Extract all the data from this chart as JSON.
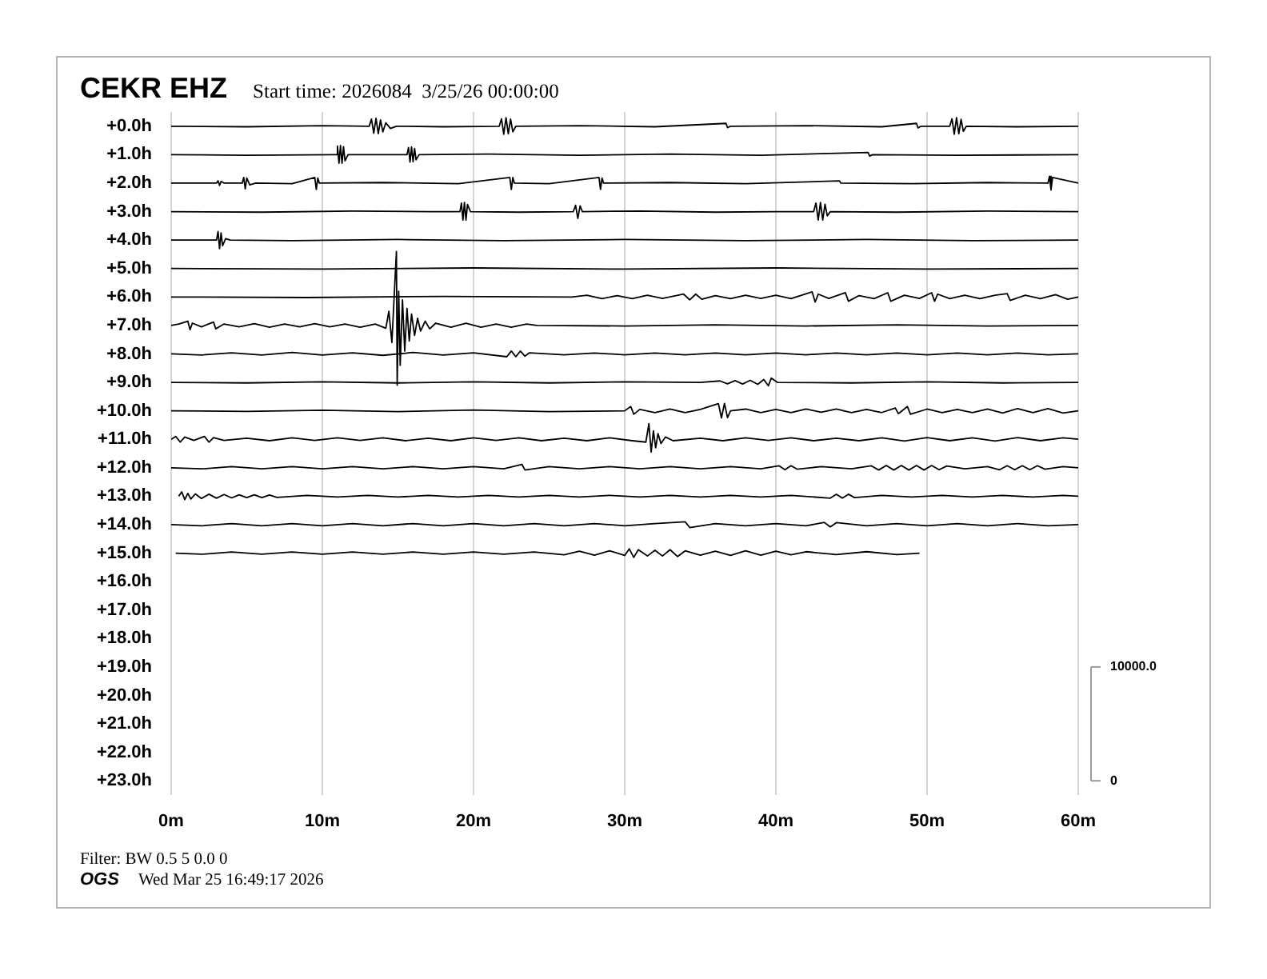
{
  "chart_data": {
    "type": "line",
    "title": "CEKR EHZ",
    "subtitle": "Start time: 2026084  3/25/26 00:00:00",
    "annotations": [
      "Filter: BW 0.5 5 0.0 0",
      "OGS",
      "Wed Mar 25 16:49:17 2026"
    ],
    "xlim": [
      0,
      60
    ],
    "xticks": [
      {
        "value": 0,
        "label": "0m"
      },
      {
        "value": 10,
        "label": "10m"
      },
      {
        "value": 20,
        "label": "20m"
      },
      {
        "value": 30,
        "label": "30m"
      },
      {
        "value": 40,
        "label": "40m"
      },
      {
        "value": 50,
        "label": "50m"
      },
      {
        "value": 60,
        "label": "60m"
      }
    ],
    "ylim": [
      23.5,
      -0.5
    ],
    "yticks": [
      {
        "value": 0,
        "label": "+0.0h"
      },
      {
        "value": 1,
        "label": "+1.0h"
      },
      {
        "value": 2,
        "label": "+2.0h"
      },
      {
        "value": 3,
        "label": "+3.0h"
      },
      {
        "value": 4,
        "label": "+4.0h"
      },
      {
        "value": 5,
        "label": "+5.0h"
      },
      {
        "value": 6,
        "label": "+6.0h"
      },
      {
        "value": 7,
        "label": "+7.0h"
      },
      {
        "value": 8,
        "label": "+8.0h"
      },
      {
        "value": 9,
        "label": "+9.0h"
      },
      {
        "value": 10,
        "label": "+10.0h"
      },
      {
        "value": 11,
        "label": "+11.0h"
      },
      {
        "value": 12,
        "label": "+12.0h"
      },
      {
        "value": 13,
        "label": "+13.0h"
      },
      {
        "value": 14,
        "label": "+14.0h"
      },
      {
        "value": 15,
        "label": "+15.0h"
      },
      {
        "value": 16,
        "label": "+16.0h"
      },
      {
        "value": 17,
        "label": "+17.0h"
      },
      {
        "value": 18,
        "label": "+18.0h"
      },
      {
        "value": 19,
        "label": "+19.0h"
      },
      {
        "value": 20,
        "label": "+20.0h"
      },
      {
        "value": 21,
        "label": "+21.0h"
      },
      {
        "value": 22,
        "label": "+22.0h"
      },
      {
        "value": 23,
        "label": "+23.0h"
      }
    ],
    "y2lim": [
      -1250,
      58750
    ],
    "y2ticks": [
      0,
      {
        "value": 10000,
        "label": "10000.0"
      }
    ],
    "grid": "x",
    "series": [
      {
        "color": "#000000",
        "x": [
          0,
          5,
          10,
          13.1,
          13.25,
          13.4,
          13.55,
          13.7,
          13.85,
          14.0,
          14.2,
          14.5,
          14.9,
          18,
          21.7,
          21.85,
          22.0,
          22.15,
          22.3,
          22.45,
          22.6,
          22.8,
          27,
          32,
          36.7,
          36.8,
          37,
          42,
          47,
          49.3,
          49.4,
          49.6,
          51.5,
          51.65,
          51.8,
          51.95,
          52.1,
          52.25,
          52.4,
          52.6,
          56,
          60
        ],
        "values": [
          0,
          0.02,
          -0.02,
          0,
          -0.25,
          0.25,
          -0.28,
          0.26,
          -0.22,
          0.2,
          -0.12,
          0.08,
          0,
          0.02,
          0,
          -0.26,
          0.28,
          -0.3,
          0.27,
          -0.25,
          0.2,
          0,
          -0.02,
          0.02,
          -0.1,
          0.05,
          0,
          -0.02,
          0.02,
          -0.1,
          0.06,
          0,
          0,
          -0.26,
          0.28,
          -0.3,
          0.27,
          -0.24,
          0.18,
          0,
          0.02,
          0
        ]
      },
      {
        "color": "#000000",
        "x": [
          0,
          5,
          10.9,
          11.0,
          11.1,
          11.2,
          11.3,
          11.4,
          11.5,
          11.7,
          15.6,
          15.7,
          15.8,
          15.9,
          16.0,
          16.1,
          16.2,
          16.4,
          21,
          27,
          33,
          39,
          46.1,
          46.2,
          46.4,
          52,
          60
        ],
        "values": [
          1,
          1.02,
          1,
          0.7,
          1.3,
          0.68,
          1.3,
          0.72,
          1.22,
          1,
          1,
          0.75,
          1.26,
          0.73,
          1.25,
          0.78,
          1.18,
          1,
          0.98,
          1.02,
          0.98,
          1.02,
          0.92,
          1.05,
          1,
          1.02,
          1
        ]
      },
      {
        "color": "#000000",
        "x": [
          0,
          3.0,
          3.1,
          3.2,
          3.3,
          3.5,
          4.7,
          4.8,
          4.9,
          5.0,
          5.2,
          5.6,
          8,
          9.5,
          9.6,
          9.7,
          9.8,
          14,
          19,
          22.4,
          22.5,
          22.6,
          22.7,
          25,
          28.3,
          28.4,
          28.5,
          28.6,
          33,
          38,
          44.2,
          44.3,
          49,
          54,
          58.0,
          58.1,
          58.2,
          58.3,
          60
        ],
        "values": [
          2,
          2,
          1.92,
          2.08,
          1.94,
          2,
          2,
          1.8,
          2.2,
          1.82,
          2.06,
          2,
          2.02,
          1.8,
          2.22,
          1.82,
          2,
          1.98,
          2.02,
          1.8,
          2.22,
          1.8,
          2,
          2.02,
          1.8,
          2.22,
          1.82,
          2,
          1.98,
          2.02,
          1.92,
          2,
          2.02,
          1.98,
          2,
          1.76,
          2.24,
          1.8,
          2
        ]
      },
      {
        "color": "#000000",
        "x": [
          0,
          6,
          12,
          17,
          19.1,
          19.2,
          19.3,
          19.4,
          19.5,
          19.6,
          19.8,
          23,
          26.6,
          26.75,
          26.9,
          27.05,
          27.2,
          31,
          36,
          40,
          42.5,
          42.65,
          42.8,
          42.95,
          43.1,
          43.25,
          43.4,
          43.6,
          48,
          54,
          60
        ],
        "values": [
          3,
          3.02,
          2.98,
          3,
          3,
          2.7,
          3.3,
          2.68,
          3.3,
          2.75,
          3,
          3.02,
          3,
          2.78,
          3.24,
          2.8,
          3,
          2.98,
          3.02,
          3,
          3,
          2.7,
          3.3,
          2.68,
          3.3,
          2.74,
          3.15,
          3,
          3.02,
          2.98,
          3
        ]
      },
      {
        "color": "#000000",
        "x": [
          0,
          3.0,
          3.1,
          3.2,
          3.3,
          3.4,
          3.6,
          3.9,
          8,
          15,
          22,
          30,
          38,
          46,
          53,
          60
        ],
        "values": [
          4,
          4,
          3.7,
          4.3,
          3.75,
          4.2,
          3.95,
          4,
          4.02,
          3.98,
          4.02,
          3.98,
          4.02,
          3.98,
          4.02,
          4
        ]
      },
      {
        "color": "#000000",
        "x": [
          0,
          10,
          20,
          30,
          40,
          50,
          60
        ],
        "values": [
          5,
          5.02,
          4.98,
          5.02,
          4.98,
          5.02,
          5
        ]
      },
      {
        "color": "#000000",
        "x": [
          0,
          9,
          18,
          26.5,
          27.5,
          28.5,
          29.5,
          30.5,
          31.5,
          32.5,
          33.9,
          34.3,
          34.7,
          35.1,
          36,
          37,
          38,
          39,
          40,
          41,
          42.4,
          42.6,
          42.8,
          43.5,
          44.6,
          44.8,
          45.5,
          46.5,
          47.4,
          47.6,
          48.5,
          49.5,
          50.3,
          50.5,
          50.7,
          51.5,
          52.5,
          53.5,
          54.5,
          55.3,
          55.5,
          56.5,
          57.5,
          58.5,
          59.3,
          60
        ],
        "values": [
          6,
          6.02,
          5.98,
          6,
          5.94,
          6.06,
          5.95,
          6.06,
          5.94,
          6.05,
          5.9,
          6.1,
          5.9,
          6.08,
          5.95,
          6.06,
          5.94,
          6.05,
          5.94,
          6.06,
          5.82,
          6.18,
          5.9,
          6.05,
          5.85,
          6.15,
          5.95,
          6.06,
          5.85,
          6.15,
          5.94,
          6.05,
          5.85,
          6.15,
          5.9,
          6.06,
          5.94,
          6.06,
          5.94,
          5.88,
          6.12,
          5.94,
          6.06,
          5.92,
          6.08,
          6
        ]
      },
      {
        "color": "#000000",
        "x": [
          0,
          0.5,
          1.1,
          1.25,
          1.4,
          2,
          2.8,
          2.95,
          3.5,
          4.5,
          5.5,
          6.5,
          7.5,
          8.5,
          9.5,
          10.5,
          11.5,
          12.5,
          13.5,
          14.2,
          14.4,
          14.6,
          14.75,
          14.9,
          14.95,
          15.05,
          15.15,
          15.3,
          15.45,
          15.6,
          15.75,
          15.9,
          16.1,
          16.3,
          16.5,
          16.8,
          17.1,
          17.5,
          18.5,
          19.5,
          20.5,
          21.5,
          22.5,
          23.5,
          24.2,
          30,
          36,
          42,
          48,
          54,
          60
        ],
        "values": [
          7,
          6.95,
          6.85,
          7.15,
          6.92,
          7.05,
          6.88,
          7.12,
          6.95,
          7.05,
          6.94,
          7.06,
          6.95,
          7.05,
          6.94,
          7.05,
          6.95,
          7.06,
          6.95,
          7.1,
          6.5,
          7.6,
          6,
          4.4,
          9.1,
          5.8,
          8.4,
          6.1,
          7.9,
          6.4,
          7.55,
          6.6,
          7.35,
          6.75,
          7.2,
          6.85,
          7.12,
          6.92,
          7.06,
          6.92,
          7.06,
          6.95,
          7.06,
          6.95,
          7,
          7.02,
          6.98,
          7.02,
          6.98,
          7.02,
          7
        ]
      },
      {
        "color": "#000000",
        "x": [
          0,
          2,
          4,
          6,
          8,
          10,
          12,
          14,
          16,
          18,
          20,
          22.2,
          22.5,
          22.8,
          23.1,
          23.4,
          23.7,
          26,
          28,
          30,
          32,
          34,
          36,
          38,
          40,
          42,
          44,
          46,
          48,
          50,
          52,
          54,
          56,
          58,
          60
        ],
        "values": [
          8,
          8.04,
          7.96,
          8.04,
          7.95,
          8.04,
          7.96,
          8.05,
          7.95,
          8.04,
          7.96,
          8.1,
          7.9,
          8.1,
          7.9,
          8.08,
          7.96,
          8.03,
          7.97,
          8.03,
          7.97,
          8.03,
          7.97,
          8.03,
          7.97,
          8.03,
          7.97,
          8.03,
          7.97,
          8.03,
          7.97,
          8.03,
          7.97,
          8.03,
          8
        ]
      },
      {
        "color": "#000000",
        "x": [
          0,
          5,
          10,
          15,
          20,
          25,
          30,
          35,
          36.3,
          36.8,
          37.3,
          37.8,
          38.3,
          38.8,
          39.2,
          39.5,
          39.7,
          40.1,
          45,
          50,
          55,
          60
        ],
        "values": [
          9,
          9.02,
          8.98,
          9.02,
          8.98,
          9.02,
          8.98,
          9,
          8.95,
          9.05,
          8.94,
          9.06,
          8.93,
          9.07,
          8.9,
          9.12,
          8.85,
          9,
          9.02,
          8.98,
          9.02,
          9
        ]
      },
      {
        "color": "#000000",
        "x": [
          0,
          5,
          10,
          15,
          20,
          25,
          30,
          30.4,
          30.6,
          31,
          32,
          33,
          34,
          35,
          36.2,
          36.4,
          36.6,
          36.8,
          37,
          38,
          39,
          40,
          41,
          42,
          43,
          44,
          45,
          46,
          47,
          47.9,
          48.1,
          48.7,
          48.9,
          50,
          51,
          52,
          53,
          54,
          55,
          56,
          57,
          58,
          59,
          60
        ],
        "values": [
          10,
          10.02,
          9.98,
          10.03,
          9.97,
          10.03,
          10,
          9.85,
          10.12,
          9.95,
          10.06,
          9.94,
          10.06,
          9.95,
          9.75,
          10.25,
          9.74,
          10.24,
          10,
          9.94,
          10.06,
          9.95,
          10.06,
          9.94,
          10.05,
          9.94,
          10.06,
          9.95,
          10.06,
          9.9,
          10.1,
          9.85,
          10.12,
          9.94,
          10.06,
          9.95,
          10.06,
          9.94,
          10.08,
          9.92,
          10.06,
          9.92,
          10.08,
          10
        ]
      },
      {
        "color": "#000000",
        "x": [
          0,
          0.3,
          0.6,
          0.9,
          1.5,
          2.2,
          2.5,
          2.8,
          3.5,
          5,
          6.5,
          8,
          9.5,
          11,
          12.5,
          14,
          15.5,
          17,
          18.5,
          20,
          21.5,
          23,
          24.5,
          26,
          27.5,
          29,
          30.5,
          31.4,
          31.6,
          31.75,
          31.9,
          32.05,
          32.2,
          32.4,
          32.7,
          33.2,
          35,
          36.5,
          38,
          39.5,
          41,
          42.5,
          44,
          45.5,
          47,
          48.5,
          50,
          51.5,
          53,
          54.5,
          56,
          57.5,
          59,
          60
        ],
        "values": [
          11,
          10.9,
          11.1,
          10.92,
          11.04,
          10.9,
          11.1,
          10.94,
          11.04,
          10.96,
          11.05,
          10.95,
          11.04,
          10.95,
          11.04,
          10.95,
          11.05,
          10.96,
          11.05,
          10.95,
          11.04,
          10.95,
          11.05,
          10.96,
          11.05,
          10.95,
          11.05,
          11.1,
          10.45,
          11.45,
          10.7,
          11.3,
          10.8,
          11.15,
          10.92,
          11.05,
          10.96,
          11.05,
          10.95,
          11.04,
          10.95,
          11.05,
          10.96,
          11.05,
          10.95,
          11.06,
          10.94,
          11.05,
          10.95,
          11.06,
          10.94,
          11.05,
          10.95,
          11
        ]
      },
      {
        "color": "#000000",
        "x": [
          0,
          2,
          4,
          6,
          8,
          10,
          12,
          14,
          16,
          18,
          20,
          22,
          23.2,
          23.4,
          25,
          27,
          29,
          31,
          33,
          35,
          37,
          39,
          40.2,
          40.6,
          41,
          41.4,
          43,
          45,
          46.3,
          46.8,
          47.3,
          47.8,
          48.3,
          48.8,
          49.3,
          49.8,
          50.3,
          50.8,
          51.3,
          52.5,
          54,
          54.8,
          55.3,
          55.8,
          56.3,
          56.8,
          57.3,
          57.8,
          59,
          60
        ],
        "values": [
          12,
          12.04,
          11.96,
          12.04,
          11.96,
          12.04,
          11.96,
          12.04,
          11.96,
          12.04,
          11.96,
          12.04,
          11.88,
          12.08,
          11.96,
          12.04,
          11.96,
          12.04,
          11.96,
          12.04,
          11.96,
          12.04,
          11.93,
          12.07,
          11.93,
          12.05,
          11.96,
          12.04,
          11.93,
          12.08,
          11.92,
          12.08,
          11.92,
          12.08,
          11.92,
          12.08,
          11.92,
          12.07,
          11.94,
          12.04,
          11.96,
          12.07,
          11.93,
          12.07,
          11.93,
          12.07,
          11.93,
          12.05,
          11.96,
          12
        ]
      },
      {
        "color": "#000000",
        "x": [
          0.5,
          0.7,
          0.9,
          1.1,
          1.3,
          1.6,
          2,
          2.5,
          3,
          3.5,
          4,
          4.5,
          5,
          5.5,
          6,
          6.5,
          7,
          9,
          11,
          13,
          15,
          17,
          19,
          21,
          23,
          25,
          27,
          29,
          31,
          33,
          35,
          37,
          39,
          41,
          43.6,
          44,
          44.4,
          44.8,
          45.2,
          47,
          49,
          51,
          53,
          55,
          57,
          59,
          60
        ],
        "values": [
          13,
          12.85,
          13.12,
          12.9,
          13.1,
          12.92,
          13.08,
          12.93,
          13.07,
          12.94,
          13.06,
          12.95,
          13.05,
          12.95,
          13.05,
          12.96,
          13.04,
          12.97,
          13.03,
          12.97,
          13.03,
          12.97,
          13.03,
          12.97,
          13.03,
          12.97,
          13.03,
          12.97,
          13.03,
          12.97,
          13.03,
          12.97,
          13.03,
          12.97,
          13.07,
          12.93,
          13.07,
          12.93,
          13.05,
          12.97,
          13.03,
          12.97,
          13.03,
          12.97,
          13.03,
          12.97,
          13
        ]
      },
      {
        "color": "#000000",
        "x": [
          0,
          2,
          4,
          6,
          8,
          10,
          12,
          14,
          16,
          18,
          20,
          22,
          24,
          26,
          28,
          30,
          32,
          34,
          34.3,
          36,
          38,
          40,
          42,
          43.2,
          43.6,
          44,
          46,
          48,
          50,
          52,
          54,
          56,
          58,
          60
        ],
        "values": [
          14,
          14.04,
          13.96,
          14.04,
          13.96,
          14.04,
          13.96,
          14.04,
          13.96,
          14.04,
          13.96,
          14.04,
          13.96,
          14.04,
          13.96,
          14.04,
          13.96,
          13.9,
          14.1,
          13.96,
          14.04,
          13.96,
          14.04,
          13.92,
          14.08,
          13.93,
          14.04,
          13.96,
          14.04,
          13.96,
          14.04,
          13.96,
          14.04,
          14
        ]
      },
      {
        "color": "#000000",
        "x": [
          0.3,
          2,
          4,
          6,
          8,
          10,
          12,
          14,
          16,
          18,
          20,
          22,
          24,
          26,
          27,
          28,
          29,
          30,
          30.3,
          30.6,
          30.9,
          31.5,
          32,
          32.5,
          33,
          33.5,
          34,
          35,
          36,
          37,
          38,
          39,
          40,
          41,
          42,
          44,
          46,
          48,
          49.5
        ],
        "values": [
          15,
          15.04,
          14.96,
          15.04,
          14.96,
          15.04,
          14.96,
          15.04,
          14.96,
          15.04,
          14.96,
          15.04,
          14.96,
          15.06,
          14.93,
          15.07,
          14.92,
          15.08,
          14.85,
          15.15,
          14.88,
          15.1,
          14.9,
          15.1,
          14.88,
          15.12,
          14.92,
          15.07,
          14.93,
          15.08,
          14.92,
          15.07,
          14.93,
          15.06,
          14.95,
          15.05,
          14.95,
          15.05,
          15
        ]
      }
    ]
  }
}
